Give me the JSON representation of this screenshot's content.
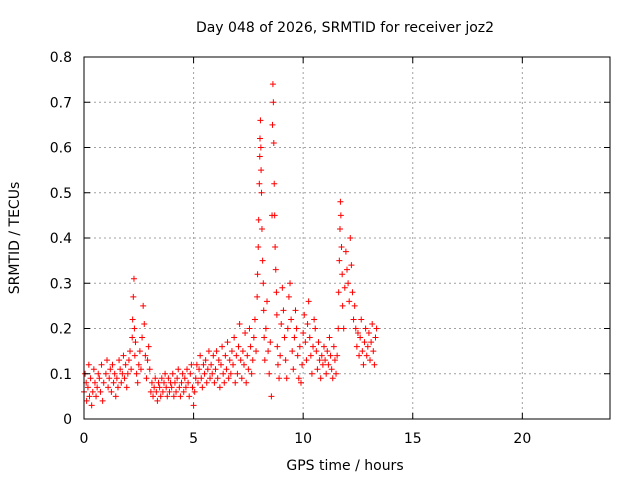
{
  "chart_data": {
    "type": "scatter",
    "title": "Day 048 of 2026, SRMTID for receiver joz2",
    "xlabel": "GPS time / hours",
    "ylabel": "SRMTID / TECUs",
    "xlim": [
      0,
      24
    ],
    "ylim": [
      0,
      0.8
    ],
    "xticks": [
      {
        "value": 0,
        "label": "0"
      },
      {
        "value": 5,
        "label": "5"
      },
      {
        "value": 10,
        "label": "10"
      },
      {
        "value": 15,
        "label": "15"
      },
      {
        "value": 20,
        "label": "20"
      }
    ],
    "yticks": [
      {
        "value": 0,
        "label": "0"
      },
      {
        "value": 0.1,
        "label": "0.1"
      },
      {
        "value": 0.2,
        "label": "0.2"
      },
      {
        "value": 0.3,
        "label": "0.3"
      },
      {
        "value": 0.4,
        "label": "0.4"
      },
      {
        "value": 0.5,
        "label": "0.5"
      },
      {
        "value": 0.6,
        "label": "0.6"
      },
      {
        "value": 0.7,
        "label": "0.7"
      },
      {
        "value": 0.8,
        "label": "0.8"
      }
    ],
    "grid": true,
    "marker": "+",
    "series": [
      {
        "name": "joz2",
        "color": "#ff0000",
        "points": [
          [
            0.0,
            0.06
          ],
          [
            0.05,
            0.1
          ],
          [
            0.1,
            0.08
          ],
          [
            0.12,
            0.04
          ],
          [
            0.18,
            0.07
          ],
          [
            0.22,
            0.12
          ],
          [
            0.25,
            0.05
          ],
          [
            0.3,
            0.09
          ],
          [
            0.35,
            0.03
          ],
          [
            0.4,
            0.06
          ],
          [
            0.45,
            0.11
          ],
          [
            0.5,
            0.08
          ],
          [
            0.55,
            0.05
          ],
          [
            0.6,
            0.07
          ],
          [
            0.65,
            0.1
          ],
          [
            0.7,
            0.09
          ],
          [
            0.75,
            0.06
          ],
          [
            0.8,
            0.12
          ],
          [
            0.85,
            0.04
          ],
          [
            0.9,
            0.08
          ],
          [
            1.0,
            0.1
          ],
          [
            1.05,
            0.13
          ],
          [
            1.1,
            0.07
          ],
          [
            1.15,
            0.09
          ],
          [
            1.2,
            0.11
          ],
          [
            1.25,
            0.06
          ],
          [
            1.3,
            0.12
          ],
          [
            1.35,
            0.08
          ],
          [
            1.4,
            0.1
          ],
          [
            1.45,
            0.05
          ],
          [
            1.5,
            0.09
          ],
          [
            1.55,
            0.07
          ],
          [
            1.6,
            0.13
          ],
          [
            1.65,
            0.11
          ],
          [
            1.7,
            0.08
          ],
          [
            1.75,
            0.1
          ],
          [
            1.8,
            0.14
          ],
          [
            1.85,
            0.09
          ],
          [
            1.9,
            0.12
          ],
          [
            1.95,
            0.07
          ],
          [
            2.0,
            0.1
          ],
          [
            2.05,
            0.13
          ],
          [
            2.1,
            0.15
          ],
          [
            2.15,
            0.11
          ],
          [
            2.2,
            0.18
          ],
          [
            2.22,
            0.22
          ],
          [
            2.25,
            0.27
          ],
          [
            2.28,
            0.31
          ],
          [
            2.3,
            0.2
          ],
          [
            2.32,
            0.14
          ],
          [
            2.35,
            0.17
          ],
          [
            2.4,
            0.1
          ],
          [
            2.45,
            0.08
          ],
          [
            2.5,
            0.12
          ],
          [
            2.55,
            0.15
          ],
          [
            2.6,
            0.11
          ],
          [
            2.65,
            0.18
          ],
          [
            2.7,
            0.25
          ],
          [
            2.75,
            0.21
          ],
          [
            2.8,
            0.14
          ],
          [
            2.85,
            0.09
          ],
          [
            2.9,
            0.13
          ],
          [
            2.95,
            0.16
          ],
          [
            3.0,
            0.11
          ],
          [
            3.05,
            0.06
          ],
          [
            3.1,
            0.08
          ],
          [
            3.15,
            0.05
          ],
          [
            3.2,
            0.07
          ],
          [
            3.25,
            0.09
          ],
          [
            3.3,
            0.06
          ],
          [
            3.35,
            0.04
          ],
          [
            3.4,
            0.08
          ],
          [
            3.45,
            0.07
          ],
          [
            3.5,
            0.05
          ],
          [
            3.55,
            0.09
          ],
          [
            3.6,
            0.06
          ],
          [
            3.65,
            0.08
          ],
          [
            3.7,
            0.1
          ],
          [
            3.75,
            0.07
          ],
          [
            3.8,
            0.05
          ],
          [
            3.85,
            0.09
          ],
          [
            3.9,
            0.06
          ],
          [
            3.95,
            0.08
          ],
          [
            4.0,
            0.07
          ],
          [
            4.05,
            0.1
          ],
          [
            4.1,
            0.05
          ],
          [
            4.15,
            0.08
          ],
          [
            4.2,
            0.06
          ],
          [
            4.25,
            0.09
          ],
          [
            4.3,
            0.11
          ],
          [
            4.35,
            0.07
          ],
          [
            4.4,
            0.05
          ],
          [
            4.45,
            0.08
          ],
          [
            4.5,
            0.1
          ],
          [
            4.55,
            0.06
          ],
          [
            4.6,
            0.09
          ],
          [
            4.65,
            0.07
          ],
          [
            4.7,
            0.11
          ],
          [
            4.75,
            0.08
          ],
          [
            4.8,
            0.05
          ],
          [
            4.85,
            0.1
          ],
          [
            4.9,
            0.12
          ],
          [
            4.95,
            0.07
          ],
          [
            5.0,
            0.03
          ],
          [
            5.05,
            0.06
          ],
          [
            5.1,
            0.09
          ],
          [
            5.15,
            0.12
          ],
          [
            5.2,
            0.08
          ],
          [
            5.25,
            0.11
          ],
          [
            5.3,
            0.14
          ],
          [
            5.35,
            0.09
          ],
          [
            5.4,
            0.07
          ],
          [
            5.45,
            0.12
          ],
          [
            5.5,
            0.1
          ],
          [
            5.55,
            0.13
          ],
          [
            5.6,
            0.08
          ],
          [
            5.65,
            0.11
          ],
          [
            5.7,
            0.15
          ],
          [
            5.75,
            0.09
          ],
          [
            5.8,
            0.12
          ],
          [
            5.85,
            0.1
          ],
          [
            5.9,
            0.14
          ],
          [
            5.95,
            0.08
          ],
          [
            6.0,
            0.11
          ],
          [
            6.05,
            0.15
          ],
          [
            6.1,
            0.09
          ],
          [
            6.15,
            0.13
          ],
          [
            6.2,
            0.07
          ],
          [
            6.25,
            0.12
          ],
          [
            6.3,
            0.16
          ],
          [
            6.35,
            0.1
          ],
          [
            6.4,
            0.08
          ],
          [
            6.45,
            0.14
          ],
          [
            6.5,
            0.11
          ],
          [
            6.55,
            0.17
          ],
          [
            6.6,
            0.09
          ],
          [
            6.65,
            0.13
          ],
          [
            6.7,
            0.1
          ],
          [
            6.75,
            0.15
          ],
          [
            6.8,
            0.12
          ],
          [
            6.85,
            0.18
          ],
          [
            6.9,
            0.08
          ],
          [
            6.95,
            0.14
          ],
          [
            7.0,
            0.1
          ],
          [
            7.05,
            0.16
          ],
          [
            7.1,
            0.21
          ],
          [
            7.15,
            0.13
          ],
          [
            7.2,
            0.09
          ],
          [
            7.25,
            0.15
          ],
          [
            7.3,
            0.12
          ],
          [
            7.35,
            0.19
          ],
          [
            7.4,
            0.08
          ],
          [
            7.45,
            0.14
          ],
          [
            7.5,
            0.11
          ],
          [
            7.55,
            0.2
          ],
          [
            7.6,
            0.16
          ],
          [
            7.65,
            0.1
          ],
          [
            7.7,
            0.13
          ],
          [
            7.75,
            0.18
          ],
          [
            7.8,
            0.22
          ],
          [
            7.85,
            0.15
          ],
          [
            7.9,
            0.27
          ],
          [
            7.92,
            0.32
          ],
          [
            7.95,
            0.38
          ],
          [
            7.97,
            0.44
          ],
          [
            8.0,
            0.52
          ],
          [
            8.02,
            0.58
          ],
          [
            8.03,
            0.62
          ],
          [
            8.05,
            0.66
          ],
          [
            8.07,
            0.6
          ],
          [
            8.08,
            0.55
          ],
          [
            8.1,
            0.5
          ],
          [
            8.12,
            0.42
          ],
          [
            8.15,
            0.35
          ],
          [
            8.18,
            0.3
          ],
          [
            8.2,
            0.24
          ],
          [
            8.22,
            0.18
          ],
          [
            8.25,
            0.13
          ],
          [
            8.3,
            0.2
          ],
          [
            8.35,
            0.26
          ],
          [
            8.4,
            0.15
          ],
          [
            8.45,
            0.1
          ],
          [
            8.5,
            0.17
          ],
          [
            8.55,
            0.05
          ],
          [
            8.58,
            0.45
          ],
          [
            8.6,
            0.65
          ],
          [
            8.62,
            0.74
          ],
          [
            8.64,
            0.7
          ],
          [
            8.66,
            0.61
          ],
          [
            8.68,
            0.52
          ],
          [
            8.7,
            0.45
          ],
          [
            8.72,
            0.38
          ],
          [
            8.75,
            0.33
          ],
          [
            8.78,
            0.28
          ],
          [
            8.8,
            0.23
          ],
          [
            8.82,
            0.16
          ],
          [
            8.85,
            0.12
          ],
          [
            8.9,
            0.09
          ],
          [
            8.95,
            0.14
          ],
          [
            9.0,
            0.21
          ],
          [
            9.05,
            0.29
          ],
          [
            9.1,
            0.24
          ],
          [
            9.15,
            0.18
          ],
          [
            9.2,
            0.13
          ],
          [
            9.25,
            0.09
          ],
          [
            9.3,
            0.2
          ],
          [
            9.35,
            0.27
          ],
          [
            9.4,
            0.3
          ],
          [
            9.45,
            0.22
          ],
          [
            9.5,
            0.15
          ],
          [
            9.55,
            0.11
          ],
          [
            9.6,
            0.18
          ],
          [
            9.65,
            0.24
          ],
          [
            9.7,
            0.2
          ],
          [
            9.75,
            0.14
          ],
          [
            9.8,
            0.09
          ],
          [
            9.85,
            0.16
          ],
          [
            9.9,
            0.08
          ],
          [
            9.95,
            0.12
          ],
          [
            10.0,
            0.19
          ],
          [
            10.05,
            0.23
          ],
          [
            10.1,
            0.17
          ],
          [
            10.15,
            0.13
          ],
          [
            10.2,
            0.21
          ],
          [
            10.25,
            0.26
          ],
          [
            10.3,
            0.18
          ],
          [
            10.35,
            0.14
          ],
          [
            10.4,
            0.1
          ],
          [
            10.45,
            0.16
          ],
          [
            10.5,
            0.22
          ],
          [
            10.55,
            0.2
          ],
          [
            10.6,
            0.15
          ],
          [
            10.65,
            0.11
          ],
          [
            10.7,
            0.17
          ],
          [
            10.75,
            0.13
          ],
          [
            10.8,
            0.09
          ],
          [
            10.85,
            0.14
          ],
          [
            10.9,
            0.12
          ],
          [
            10.95,
            0.16
          ],
          [
            11.0,
            0.13
          ],
          [
            11.05,
            0.1
          ],
          [
            11.1,
            0.15
          ],
          [
            11.15,
            0.12
          ],
          [
            11.2,
            0.18
          ],
          [
            11.25,
            0.14
          ],
          [
            11.3,
            0.11
          ],
          [
            11.35,
            0.09
          ],
          [
            11.4,
            0.16
          ],
          [
            11.45,
            0.13
          ],
          [
            11.5,
            0.1
          ],
          [
            11.55,
            0.14
          ],
          [
            11.6,
            0.2
          ],
          [
            11.62,
            0.28
          ],
          [
            11.65,
            0.35
          ],
          [
            11.68,
            0.42
          ],
          [
            11.7,
            0.48
          ],
          [
            11.72,
            0.45
          ],
          [
            11.75,
            0.38
          ],
          [
            11.78,
            0.32
          ],
          [
            11.8,
            0.25
          ],
          [
            11.85,
            0.2
          ],
          [
            11.9,
            0.29
          ],
          [
            11.95,
            0.37
          ],
          [
            12.0,
            0.33
          ],
          [
            12.05,
            0.3
          ],
          [
            12.1,
            0.26
          ],
          [
            12.15,
            0.4
          ],
          [
            12.2,
            0.34
          ],
          [
            12.25,
            0.28
          ],
          [
            12.3,
            0.22
          ],
          [
            12.35,
            0.25
          ],
          [
            12.4,
            0.2
          ],
          [
            12.45,
            0.16
          ],
          [
            12.5,
            0.19
          ],
          [
            12.55,
            0.14
          ],
          [
            12.6,
            0.18
          ],
          [
            12.65,
            0.22
          ],
          [
            12.7,
            0.15
          ],
          [
            12.75,
            0.12
          ],
          [
            12.8,
            0.17
          ],
          [
            12.85,
            0.2
          ],
          [
            12.9,
            0.14
          ],
          [
            12.95,
            0.16
          ],
          [
            13.0,
            0.19
          ],
          [
            13.05,
            0.13
          ],
          [
            13.1,
            0.17
          ],
          [
            13.15,
            0.21
          ],
          [
            13.2,
            0.15
          ],
          [
            13.25,
            0.12
          ],
          [
            13.3,
            0.18
          ],
          [
            13.35,
            0.2
          ]
        ]
      }
    ]
  }
}
